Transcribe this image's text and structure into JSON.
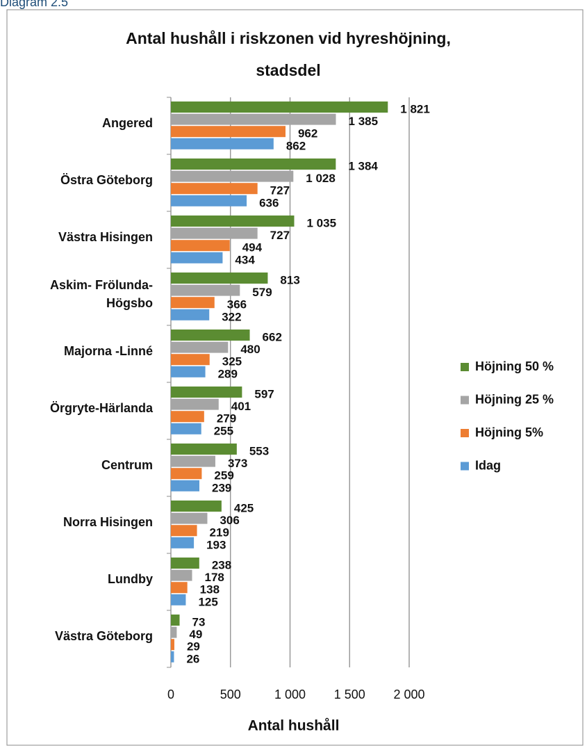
{
  "header": "Diagram 2.5",
  "chart_data": {
    "type": "bar",
    "orientation": "horizontal",
    "title": "Antal hushåll i riskzonen vid hyreshöjning,\nstadsdel",
    "xlabel": "Antal hushåll",
    "categories": [
      "Angered",
      "Östra Göteborg",
      "Västra Hisingen",
      "Askim- Frölunda-\nHögsbo",
      "Majorna -Linné",
      "Örgryte-Härlanda",
      "Centrum",
      "Norra Hisingen",
      "Lundby",
      "Västra Göteborg"
    ],
    "series": [
      {
        "name": "Höjning 50 %",
        "color": "#5b8c32",
        "values": [
          1821,
          1384,
          1035,
          813,
          662,
          597,
          553,
          425,
          238,
          73
        ],
        "value_labels": [
          "1 821",
          "1 384",
          "1 035",
          "813",
          "662",
          "597",
          "553",
          "425",
          "238",
          "73"
        ]
      },
      {
        "name": "Höjning 25 %",
        "color": "#a5a5a5",
        "values": [
          1385,
          1028,
          727,
          579,
          480,
          401,
          373,
          306,
          178,
          49
        ],
        "value_labels": [
          "1 385",
          "1 028",
          "727",
          "579",
          "480",
          "401",
          "373",
          "306",
          "178",
          "49"
        ]
      },
      {
        "name": "Höjning 5%",
        "color": "#ed7d31",
        "values": [
          962,
          727,
          494,
          366,
          325,
          279,
          259,
          219,
          138,
          29
        ],
        "value_labels": [
          "962",
          "727",
          "494",
          "366",
          "325",
          "279",
          "259",
          "219",
          "138",
          "29"
        ]
      },
      {
        "name": "Idag",
        "color": "#5b9bd5",
        "values": [
          862,
          636,
          434,
          322,
          289,
          255,
          239,
          193,
          125,
          26
        ],
        "value_labels": [
          "862",
          "636",
          "434",
          "322",
          "289",
          "255",
          "239",
          "193",
          "125",
          "26"
        ]
      }
    ],
    "xlim": [
      0,
      2000
    ],
    "xticks": [
      0,
      500,
      {
        "value": 1000,
        "label": "1 000"
      },
      {
        "value": 1500,
        "label": "1 500"
      },
      {
        "value": 2000,
        "label": "2 000"
      }
    ],
    "grid": true,
    "legend": "right"
  }
}
